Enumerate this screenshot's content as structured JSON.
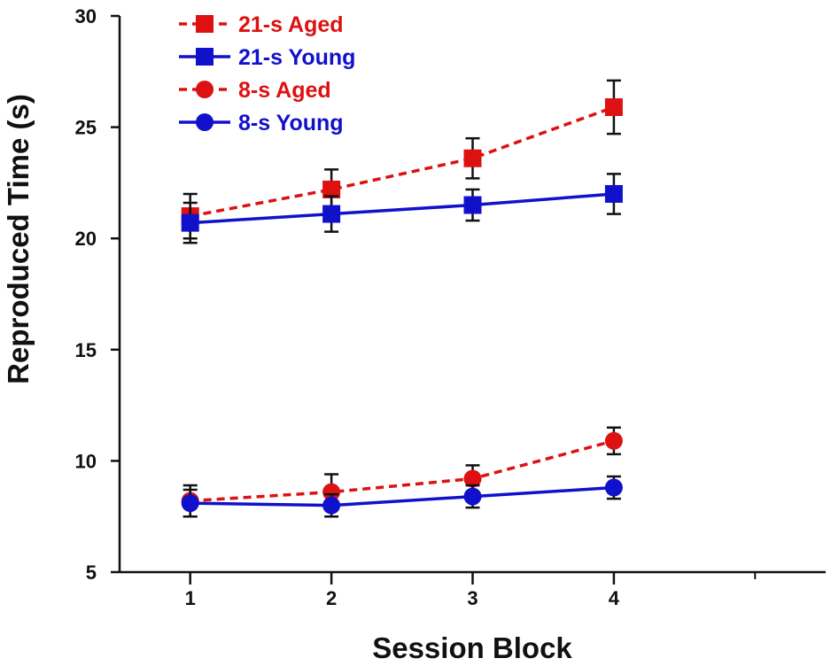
{
  "chart_data": {
    "type": "line",
    "title": "",
    "xlabel": "Session Block",
    "ylabel": "Reproduced Time (s)",
    "x": [
      1,
      2,
      3,
      4
    ],
    "xticks": [
      "1",
      "2",
      "3",
      "4"
    ],
    "xlim": [
      0.5,
      5.5
    ],
    "yticks": [
      "5",
      "10",
      "15",
      "20",
      "25",
      "30"
    ],
    "ylim": [
      5,
      30
    ],
    "grid": false,
    "legend_position": "top-left",
    "series": [
      {
        "name": "21-s Aged",
        "values": [
          21.0,
          22.2,
          23.6,
          25.9
        ],
        "errors": [
          1.0,
          0.9,
          0.9,
          1.2
        ],
        "color": "#dd1111",
        "marker": "square",
        "dashed": true
      },
      {
        "name": "21-s Young",
        "values": [
          20.7,
          21.1,
          21.5,
          22.0
        ],
        "errors": [
          0.9,
          0.8,
          0.7,
          0.9
        ],
        "color": "#1111cc",
        "marker": "square",
        "dashed": false
      },
      {
        "name": "8-s Aged",
        "values": [
          8.2,
          8.6,
          9.2,
          10.9
        ],
        "errors": [
          0.7,
          0.8,
          0.6,
          0.6
        ],
        "color": "#dd1111",
        "marker": "circle",
        "dashed": true
      },
      {
        "name": "8-s Young",
        "values": [
          8.1,
          8.0,
          8.4,
          8.8
        ],
        "errors": [
          0.6,
          0.5,
          0.5,
          0.5
        ],
        "color": "#1111cc",
        "marker": "circle",
        "dashed": false
      }
    ]
  }
}
